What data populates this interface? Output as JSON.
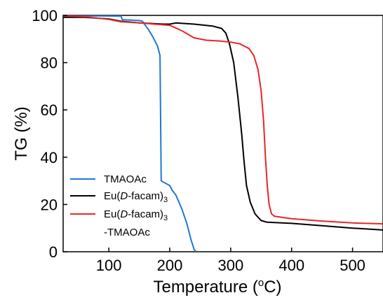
{
  "chart_data": {
    "type": "line",
    "xlabel": "Temperature (",
    "xlabel_deg": "o",
    "xlabel_end": "C)",
    "ylabel": "TG (%)",
    "xlim": [
      25,
      550
    ],
    "ylim": [
      0,
      100
    ],
    "x_ticks": [
      100,
      200,
      300,
      400,
      500
    ],
    "y_ticks": [
      0,
      20,
      40,
      60,
      80,
      100
    ],
    "x_tick_labels": [
      "100",
      "200",
      "300",
      "400",
      "500"
    ],
    "y_tick_labels": [
      "0",
      "20",
      "40",
      "60",
      "80",
      "100"
    ],
    "grid": false,
    "legend_position": "bottom-left",
    "series": [
      {
        "name": "TMAOAc",
        "color": "#1f77d4",
        "points": [
          [
            25,
            99.8
          ],
          [
            80,
            99.8
          ],
          [
            120,
            99.7
          ],
          [
            122,
            98.2
          ],
          [
            150,
            97.8
          ],
          [
            155,
            97.5
          ],
          [
            165,
            94
          ],
          [
            172,
            91
          ],
          [
            180,
            87
          ],
          [
            184,
            83
          ],
          [
            186,
            30
          ],
          [
            200,
            28
          ],
          [
            204,
            26
          ],
          [
            210,
            24
          ],
          [
            220,
            18
          ],
          [
            228,
            12
          ],
          [
            235,
            5
          ],
          [
            240,
            1
          ],
          [
            243,
            0
          ]
        ]
      },
      {
        "name": "Eu(D-facam)3",
        "name_parts": [
          "Eu(",
          "D",
          "-facam)",
          "3"
        ],
        "color": "#000000",
        "points": [
          [
            25,
            99.2
          ],
          [
            60,
            99.2
          ],
          [
            100,
            98.5
          ],
          [
            120,
            97.5
          ],
          [
            150,
            96.8
          ],
          [
            190,
            96.3
          ],
          [
            200,
            96.3
          ],
          [
            210,
            96.8
          ],
          [
            240,
            96.3
          ],
          [
            270,
            95.5
          ],
          [
            285,
            94.5
          ],
          [
            292,
            92.5
          ],
          [
            298,
            88
          ],
          [
            305,
            80
          ],
          [
            312,
            65
          ],
          [
            318,
            50
          ],
          [
            322,
            38
          ],
          [
            326,
            28
          ],
          [
            332,
            21
          ],
          [
            340,
            16
          ],
          [
            350,
            13.2
          ],
          [
            360,
            12.5
          ],
          [
            400,
            12
          ],
          [
            450,
            11
          ],
          [
            500,
            10
          ],
          [
            550,
            9.2
          ]
        ]
      },
      {
        "name": "Eu(D-facam)3-TMAOAc",
        "name_parts": [
          "Eu(",
          "D",
          "-facam)",
          "3",
          "-TMAOAc"
        ],
        "color": "#e8262a",
        "points": [
          [
            25,
            99.8
          ],
          [
            60,
            99.5
          ],
          [
            100,
            98.3
          ],
          [
            120,
            97.3
          ],
          [
            150,
            96.8
          ],
          [
            175,
            96.3
          ],
          [
            200,
            95.8
          ],
          [
            220,
            93.5
          ],
          [
            240,
            90.5
          ],
          [
            260,
            89.5
          ],
          [
            280,
            89.2
          ],
          [
            300,
            88.7
          ],
          [
            315,
            88
          ],
          [
            330,
            86
          ],
          [
            338,
            83
          ],
          [
            345,
            77
          ],
          [
            350,
            68
          ],
          [
            354,
            55
          ],
          [
            357,
            40
          ],
          [
            360,
            28
          ],
          [
            363,
            20
          ],
          [
            367,
            16
          ],
          [
            372,
            15
          ],
          [
            400,
            14
          ],
          [
            450,
            13
          ],
          [
            500,
            12.2
          ],
          [
            550,
            11.8
          ]
        ]
      }
    ]
  }
}
